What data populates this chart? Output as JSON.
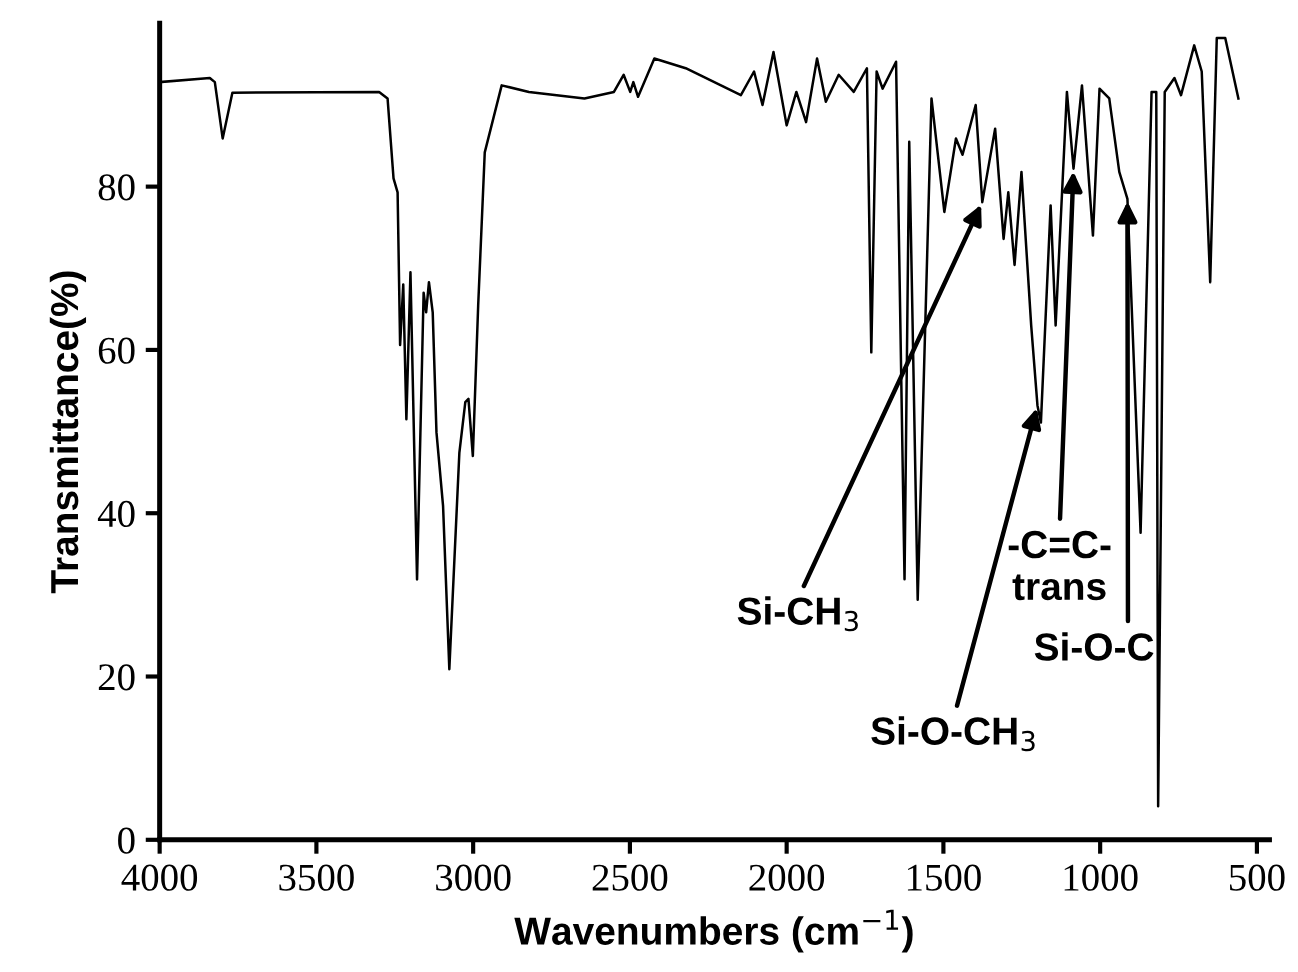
{
  "chart_data": {
    "type": "line",
    "xlabel": "Wavenumbers (cm$^{−1}$)",
    "ylabel": "Transmittance(%)",
    "xlim": [
      4000,
      460
    ],
    "ylim": [
      0,
      100
    ],
    "xticks": [
      4000,
      3500,
      3000,
      2500,
      2000,
      1500,
      1000,
      500
    ],
    "yticks": [
      0,
      20,
      40,
      60,
      80
    ],
    "grid": false,
    "legend": false,
    "marker": "none",
    "line_style": "solid",
    "series": [
      {
        "color": "#000000",
        "x": [
          4000,
          3840,
          3824,
          3799,
          3768,
          3300,
          3273,
          3254,
          3241,
          3233,
          3223,
          3213,
          3200,
          3179,
          3158,
          3150,
          3141,
          3129,
          3117,
          3096,
          3076,
          3044,
          3025,
          3015,
          3001,
          2984,
          2963,
          2936,
          2909,
          2822,
          2645,
          2551,
          2520,
          2499,
          2489,
          2474,
          2422,
          2322,
          2146,
          2104,
          2077,
          2042,
          2000,
          1969,
          1938,
          1903,
          1875,
          1834,
          1786,
          1744,
          1730,
          1713,
          1694,
          1651,
          1624,
          1609,
          1582,
          1538,
          1497,
          1460,
          1439,
          1397,
          1376,
          1335,
          1308,
          1293,
          1273,
          1251,
          1220,
          1200,
          1189,
          1158,
          1142,
          1106,
          1085,
          1058,
          1023,
          1002,
          971,
          939,
          913,
          871,
          836,
          821,
          815,
          794,
          763,
          742,
          700,
          676,
          649,
          628,
          601,
          559
        ],
        "values": [
          92.8,
          93.3,
          92.8,
          85.9,
          91.5,
          91.6,
          90.8,
          81,
          79.3,
          60.6,
          68,
          51.5,
          69.5,
          31.9,
          67,
          64.6,
          68.3,
          64.6,
          49.9,
          40.9,
          20.9,
          47.4,
          53.6,
          54,
          47,
          65.4,
          84.2,
          88.3,
          92.4,
          91.6,
          90.8,
          91.6,
          93.7,
          91.6,
          92.8,
          91,
          95.7,
          94.5,
          91.2,
          94.1,
          90,
          96.5,
          87.5,
          91.6,
          87.9,
          95.7,
          90.4,
          93.7,
          91.6,
          94.5,
          59.7,
          94.1,
          92,
          95.3,
          31.9,
          85.5,
          29.4,
          90.8,
          76.9,
          85.9,
          83.9,
          90,
          78.1,
          87.1,
          73.6,
          79.3,
          70.4,
          81.8,
          63,
          53.2,
          51.1,
          77.7,
          63,
          91.6,
          82.2,
          92.4,
          74,
          92,
          90.8,
          81.8,
          78.5,
          37.6,
          91.6,
          91.6,
          4.1,
          91.6,
          93.3,
          91.2,
          97.3,
          94.1,
          68.3,
          98.2,
          98.2,
          90.8
        ]
      }
    ],
    "annotations": [
      {
        "text": "Si-CH$_{3}$",
        "x": 1376,
        "y": 78.1
      },
      {
        "text": "Si-O-CH$_{3}$",
        "x": 1200,
        "y": 53.2
      },
      {
        "text": "-C=C-\ntrans",
        "x": 1085,
        "y": 82.2
      },
      {
        "text": "Si-O-C",
        "x": 913,
        "y": 78.5
      }
    ]
  }
}
